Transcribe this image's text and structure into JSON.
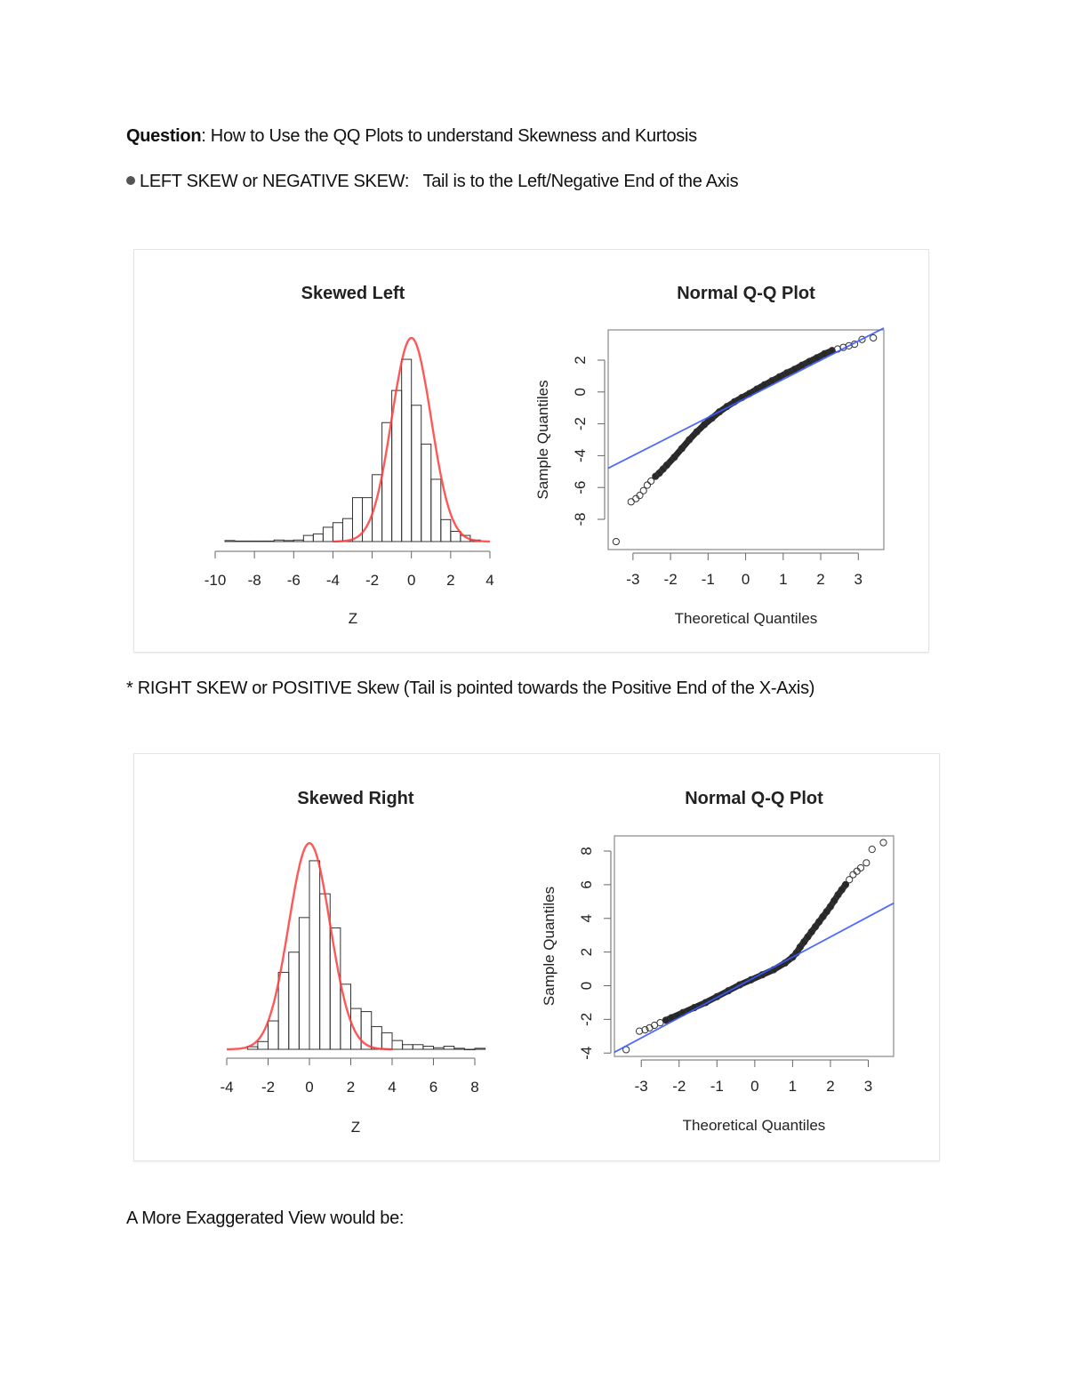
{
  "question": {
    "label": "Question",
    "text": ": How to Use the QQ Plots to understand Skewness and Kurtosis"
  },
  "left_skew_bullet": {
    "icon": "bullet-dot-icon",
    "text": "LEFT SKEW or NEGATIVE SKEW:   Tail is to the Left/Negative End of the Axis"
  },
  "right_skew_line": "*  RIGHT SKEW or POSITIVE Skew (Tail is pointed towards the Positive End of the X-Axis)",
  "exaggerated_line": "A More Exaggerated View would be:",
  "colors": {
    "bars": "#000000",
    "normal_curve": "#ff3b3b",
    "reference_line": "#3b5bff",
    "points": "#000000"
  },
  "chart_data": [
    {
      "type": "bar",
      "subtype": "histogram",
      "title": "Skewed Left",
      "xlabel": "Z",
      "ylabel": "",
      "xlim": [
        -10,
        4
      ],
      "xticks": [
        "-10",
        "-8",
        "-6",
        "-4",
        "-2",
        "0",
        "2",
        "4"
      ],
      "bin_width": 0.5,
      "bin_start": -9.5,
      "density": [
        0.002,
        0.001,
        0.001,
        0.001,
        0.001,
        0.003,
        0.002,
        0.003,
        0.012,
        0.015,
        0.028,
        0.037,
        0.045,
        0.086,
        0.086,
        0.131,
        0.233,
        0.296,
        0.357,
        0.267,
        0.191,
        0.122,
        0.043,
        0.02,
        0.012,
        0.003
      ],
      "overlay": {
        "type": "normal-density",
        "mean": 0,
        "sd": 1,
        "range": [
          -4,
          4
        ]
      },
      "grid": false
    },
    {
      "type": "scatter",
      "subtype": "qq",
      "title": "Normal Q-Q Plot",
      "xlabel": "Theoretical Quantiles",
      "ylabel": "Sample Quantiles",
      "xlim": [
        -3.66,
        3.68
      ],
      "ylim": [
        -9.9,
        3.9
      ],
      "xticks": [
        "-3",
        "-2",
        "-1",
        "0",
        "1",
        "2",
        "3"
      ],
      "yticks": [
        "-8",
        "-6",
        "-4",
        "-2",
        "0",
        "2"
      ],
      "reference_line": {
        "intercept": -0.4,
        "slope": 1.2
      },
      "points": [
        [
          -3.45,
          -9.4
        ],
        [
          -3.05,
          -6.9
        ],
        [
          -2.92,
          -6.7
        ],
        [
          -2.82,
          -6.5
        ],
        [
          -2.72,
          -6.2
        ],
        [
          -2.62,
          -5.85
        ],
        [
          -2.52,
          -5.6
        ],
        [
          -2.4,
          -5.3
        ],
        [
          -2.3,
          -5.1
        ],
        [
          -2.2,
          -4.85
        ],
        [
          -2.1,
          -4.6
        ],
        [
          -1.9,
          -4.1
        ],
        [
          -1.7,
          -3.55
        ],
        [
          -1.5,
          -3.0
        ],
        [
          -1.3,
          -2.5
        ],
        [
          -1.1,
          -2.05
        ],
        [
          -0.9,
          -1.65
        ],
        [
          -0.7,
          -1.25
        ],
        [
          -0.5,
          -0.92
        ],
        [
          -0.3,
          -0.62
        ],
        [
          -0.1,
          -0.35
        ],
        [
          0.1,
          -0.1
        ],
        [
          0.3,
          0.18
        ],
        [
          0.5,
          0.45
        ],
        [
          0.7,
          0.7
        ],
        [
          0.9,
          0.95
        ],
        [
          1.1,
          1.2
        ],
        [
          1.3,
          1.42
        ],
        [
          1.5,
          1.68
        ],
        [
          1.7,
          1.92
        ],
        [
          1.9,
          2.15
        ],
        [
          2.1,
          2.4
        ],
        [
          2.3,
          2.6
        ],
        [
          2.45,
          2.7
        ],
        [
          2.6,
          2.8
        ],
        [
          2.75,
          2.9
        ],
        [
          2.9,
          3.0
        ],
        [
          3.1,
          3.3
        ],
        [
          3.4,
          3.4
        ]
      ],
      "grid": false
    },
    {
      "type": "bar",
      "subtype": "histogram",
      "title": "Skewed Right",
      "xlabel": "Z",
      "ylabel": "",
      "xlim": [
        -4,
        8.5
      ],
      "xticks": [
        "-4",
        "-2",
        "0",
        "2",
        "4",
        "6",
        "8"
      ],
      "bin_width": 0.5,
      "bin_start": -3,
      "density": [
        0.005,
        0.015,
        0.055,
        0.149,
        0.188,
        0.255,
        0.365,
        0.301,
        0.235,
        0.126,
        0.079,
        0.073,
        0.044,
        0.032,
        0.017,
        0.009,
        0.009,
        0.006,
        0.003,
        0.006,
        0.002,
        0.0,
        0.002
      ],
      "overlay": {
        "type": "normal-density",
        "mean": 0,
        "sd": 1,
        "range": [
          -4,
          4
        ]
      },
      "grid": false
    },
    {
      "type": "scatter",
      "subtype": "qq",
      "title": "Normal Q-Q Plot",
      "xlabel": "Theoretical Quantiles",
      "ylabel": "Sample Quantiles",
      "xlim": [
        -3.71,
        3.67
      ],
      "ylim": [
        -4.2,
        8.9
      ],
      "xticks": [
        "-3",
        "-2",
        "-1",
        "0",
        "1",
        "2",
        "3"
      ],
      "yticks": [
        "-4",
        "-2",
        "0",
        "2",
        "4",
        "6",
        "8"
      ],
      "reference_line": {
        "intercept": 0.5,
        "slope": 1.2
      },
      "points": [
        [
          -3.4,
          -3.8
        ],
        [
          -3.05,
          -2.7
        ],
        [
          -2.9,
          -2.62
        ],
        [
          -2.78,
          -2.5
        ],
        [
          -2.65,
          -2.35
        ],
        [
          -2.5,
          -2.2
        ],
        [
          -2.35,
          -2.05
        ],
        [
          -2.2,
          -1.9
        ],
        [
          -1.9,
          -1.6
        ],
        [
          -1.6,
          -1.3
        ],
        [
          -1.3,
          -1.0
        ],
        [
          -1.0,
          -0.65
        ],
        [
          -0.7,
          -0.3
        ],
        [
          -0.4,
          0.05
        ],
        [
          -0.1,
          0.35
        ],
        [
          0.2,
          0.65
        ],
        [
          0.5,
          0.95
        ],
        [
          0.8,
          1.35
        ],
        [
          1.0,
          1.7
        ],
        [
          1.1,
          1.95
        ],
        [
          1.2,
          2.3
        ],
        [
          1.3,
          2.6
        ],
        [
          1.4,
          2.9
        ],
        [
          1.5,
          3.2
        ],
        [
          1.6,
          3.5
        ],
        [
          1.7,
          3.8
        ],
        [
          1.8,
          4.1
        ],
        [
          1.9,
          4.4
        ],
        [
          2.0,
          4.7
        ],
        [
          2.1,
          5.05
        ],
        [
          2.2,
          5.4
        ],
        [
          2.3,
          5.7
        ],
        [
          2.4,
          6.0
        ],
        [
          2.5,
          6.3
        ],
        [
          2.6,
          6.6
        ],
        [
          2.7,
          6.8
        ],
        [
          2.8,
          7.0
        ],
        [
          2.95,
          7.3
        ],
        [
          3.1,
          8.1
        ],
        [
          3.4,
          8.5
        ]
      ],
      "grid": false
    }
  ]
}
